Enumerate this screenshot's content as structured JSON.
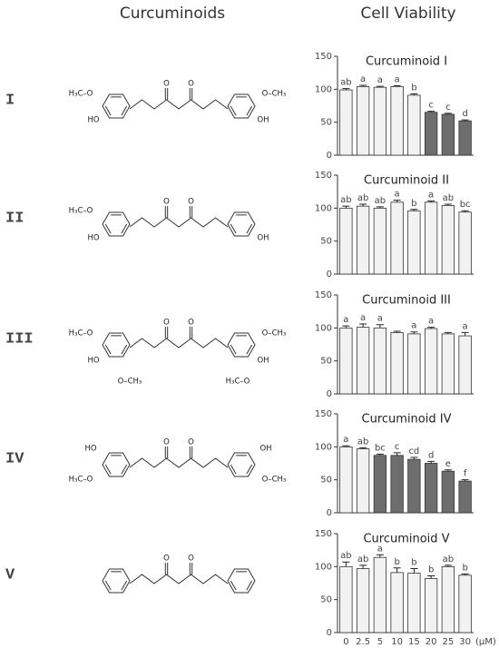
{
  "headers": [
    "Curcuminoids",
    "Cell Viability"
  ],
  "compounds": [
    {
      "label": "I",
      "atoms": [
        "H₃C–O",
        "HO",
        "O",
        "O",
        "O–CH₃",
        "OH"
      ]
    },
    {
      "label": "II",
      "atoms": [
        "H₃C–O",
        "HO",
        "O",
        "O",
        "OH"
      ]
    },
    {
      "label": "III",
      "atoms": [
        "H₃C–O",
        "HO",
        "O–CH₃",
        "O",
        "O",
        "O–CH₃",
        "OH",
        "H₃C–O"
      ]
    },
    {
      "label": "IV",
      "atoms": [
        "HO",
        "H₃C–O",
        "O",
        "O",
        "OH",
        "O–CH₃"
      ]
    },
    {
      "label": "V",
      "atoms": [
        "O",
        "O"
      ]
    }
  ],
  "chart_data": [
    {
      "type": "bar",
      "title": "Curcuminoid I",
      "values": [
        99,
        104,
        103,
        104,
        91,
        65,
        62,
        52
      ],
      "errors": [
        2,
        2,
        1.5,
        1.5,
        2,
        1.5,
        1.5,
        1.5
      ],
      "letters": [
        "ab",
        "a",
        "a",
        "a",
        "b",
        "c",
        "c",
        "d"
      ],
      "bar_colors": [
        "#f2f2f2",
        "#f2f2f2",
        "#f2f2f2",
        "#f2f2f2",
        "#f2f2f2",
        "#6e6e6e",
        "#6e6e6e",
        "#6e6e6e"
      ],
      "ylim": [
        0,
        150
      ],
      "yticks": [
        0,
        50,
        100,
        150
      ]
    },
    {
      "type": "bar",
      "title": "Curcuminoid II",
      "values": [
        100,
        103,
        100,
        109,
        96,
        109,
        104,
        94
      ],
      "errors": [
        3,
        3,
        2,
        3,
        2,
        2,
        2,
        2
      ],
      "letters": [
        "ab",
        "ab",
        "ab",
        "a",
        "b",
        "a",
        "ab",
        "bc"
      ],
      "bar_colors": [
        "#f2f2f2",
        "#f2f2f2",
        "#f2f2f2",
        "#f2f2f2",
        "#f2f2f2",
        "#f2f2f2",
        "#f2f2f2",
        "#f2f2f2"
      ],
      "ylim": [
        0,
        150
      ],
      "yticks": [
        0,
        50,
        100,
        150
      ]
    },
    {
      "type": "bar",
      "title": "Curcuminoid III",
      "values": [
        100,
        101,
        100,
        93,
        91,
        99,
        91,
        88
      ],
      "errors": [
        3,
        5,
        5,
        2,
        3,
        2,
        2,
        5
      ],
      "letters": [
        "a",
        "a",
        "a",
        null,
        "a",
        "a",
        null,
        "a"
      ],
      "bar_colors": [
        "#f2f2f2",
        "#f2f2f2",
        "#f2f2f2",
        "#f2f2f2",
        "#f2f2f2",
        "#f2f2f2",
        "#f2f2f2",
        "#f2f2f2"
      ],
      "ylim": [
        0,
        150
      ],
      "yticks": [
        0,
        50,
        100,
        150
      ]
    },
    {
      "type": "bar",
      "title": "Curcuminoid IV",
      "values": [
        100,
        97,
        87,
        87,
        81,
        75,
        63,
        48
      ],
      "errors": [
        1.5,
        1.5,
        2,
        4,
        3,
        3,
        2,
        2
      ],
      "letters": [
        "a",
        "ab",
        "bc",
        "c",
        "cd",
        "d",
        "e",
        "f"
      ],
      "bar_colors": [
        "#f2f2f2",
        "#f2f2f2",
        "#6e6e6e",
        "#6e6e6e",
        "#6e6e6e",
        "#6e6e6e",
        "#6e6e6e",
        "#6e6e6e"
      ],
      "ylim": [
        0,
        150
      ],
      "yticks": [
        0,
        50,
        100,
        150
      ]
    },
    {
      "type": "bar",
      "title": "Curcuminoid V",
      "categories": [
        "0",
        "2.5",
        "5",
        "10",
        "15",
        "20",
        "25",
        "30"
      ],
      "x_unit": "(μM)",
      "values": [
        100,
        97,
        114,
        91,
        90,
        82,
        100,
        87
      ],
      "errors": [
        7,
        5,
        4,
        7,
        7,
        4,
        2,
        2
      ],
      "letters": [
        "ab",
        "ab",
        "a",
        "b",
        "b",
        "b",
        "ab",
        "b"
      ],
      "bar_colors": [
        "#f2f2f2",
        "#f2f2f2",
        "#f2f2f2",
        "#f2f2f2",
        "#f2f2f2",
        "#f2f2f2",
        "#f2f2f2",
        "#f2f2f2"
      ],
      "ylim": [
        0,
        150
      ],
      "yticks": [
        0,
        50,
        100,
        150
      ]
    }
  ]
}
